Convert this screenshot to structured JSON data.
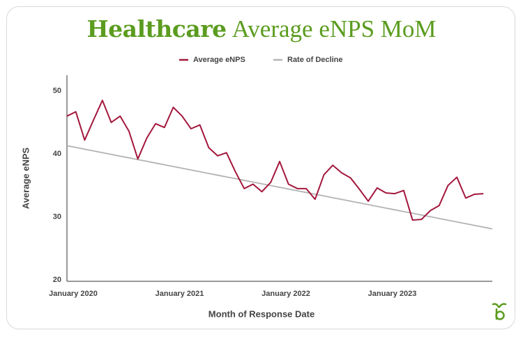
{
  "chart_data": {
    "type": "line",
    "title": {
      "emphasis": "Healthcare",
      "rest": "Average eNPS MoM"
    },
    "x_label": "Month of Response Date",
    "y_label": "Average eNPS",
    "categories": [
      "January 2020",
      null,
      null,
      null,
      null,
      null,
      null,
      null,
      null,
      null,
      null,
      null,
      "January 2021",
      null,
      null,
      null,
      null,
      null,
      null,
      null,
      null,
      null,
      null,
      null,
      "January 2022",
      null,
      null,
      null,
      null,
      null,
      null,
      null,
      null,
      null,
      null,
      null,
      "January 2023",
      null,
      null,
      null,
      null,
      null,
      null,
      null,
      null,
      null,
      null,
      null,
      null
    ],
    "series": [
      {
        "name": "Average eNPS",
        "color": "#a3173c",
        "values": [
          46,
          46.7,
          42.2,
          45.4,
          48.5,
          45,
          46,
          43.6,
          39.2,
          42.5,
          44.8,
          44.2,
          47.4,
          46,
          44,
          44.6,
          41,
          39.7,
          40.2,
          37.2,
          34.5,
          35.2,
          34,
          35.5,
          38.8,
          35.2,
          34.5,
          34.5,
          32.8,
          36.7,
          38.2,
          37,
          36.2,
          34.4,
          32.5,
          34.6,
          33.8,
          33.7,
          34.2,
          29.5,
          29.6,
          31,
          31.8,
          35,
          36.3,
          33,
          33.6,
          33.7,
          null
        ]
      },
      {
        "name": "Rate of Decline",
        "color": "#b3b3b3",
        "values": [
          41.3,
          41.03,
          40.75,
          40.48,
          40.2,
          39.93,
          39.65,
          39.38,
          39.1,
          38.83,
          38.55,
          38.28,
          38.0,
          37.73,
          37.45,
          37.18,
          36.9,
          36.63,
          36.35,
          36.08,
          35.8,
          35.53,
          35.25,
          34.98,
          34.7,
          34.43,
          34.15,
          33.88,
          33.6,
          33.33,
          33.05,
          32.78,
          32.5,
          32.23,
          31.95,
          31.68,
          31.4,
          31.13,
          30.85,
          30.58,
          30.3,
          30.03,
          29.75,
          29.48,
          29.2,
          28.93,
          28.65,
          28.38,
          28.1
        ]
      }
    ],
    "ylim": [
      20,
      52.5
    ],
    "yticks": [
      20,
      30,
      40,
      50
    ],
    "grid": false,
    "legend": "top"
  }
}
